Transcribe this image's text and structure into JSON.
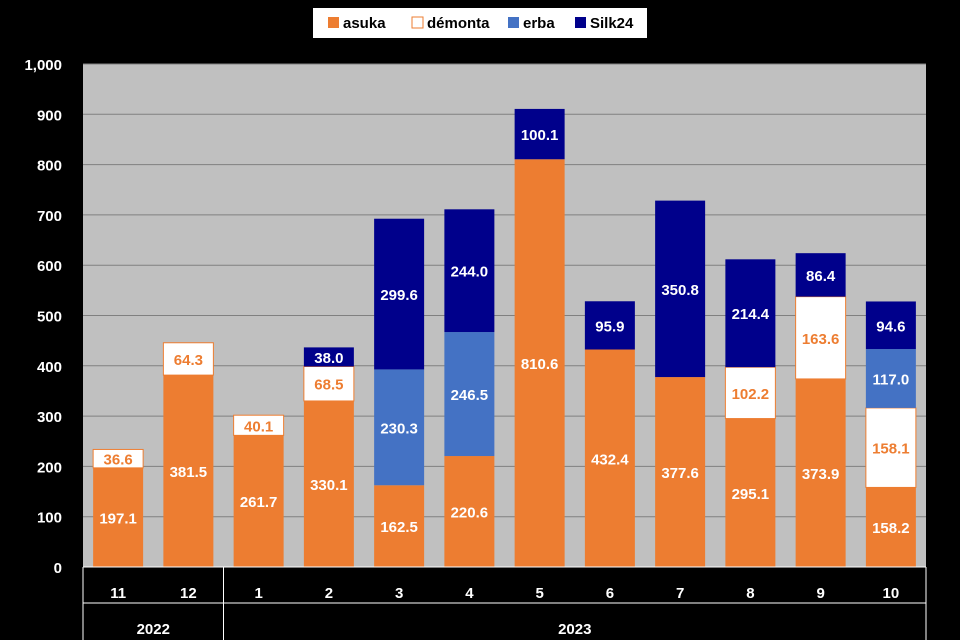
{
  "chart_data": {
    "type": "bar",
    "stacked": true,
    "categories": [
      "11",
      "12",
      "1",
      "2",
      "3",
      "4",
      "5",
      "6",
      "7",
      "8",
      "9",
      "10"
    ],
    "year_groups": [
      {
        "label": "2022",
        "count": 2
      },
      {
        "label": "2023",
        "count": 10
      }
    ],
    "series": [
      {
        "name": "asuka",
        "color": "#ED7D31",
        "label_color": "#FFFFFF",
        "values": [
          197.1,
          381.5,
          261.7,
          330.1,
          162.5,
          220.6,
          810.6,
          432.4,
          377.6,
          295.1,
          373.9,
          158.2
        ]
      },
      {
        "name": "démonta",
        "color": "#FFFFFF",
        "border": "#ED7D31",
        "label_color": "#ED7D31",
        "values": [
          36.6,
          64.3,
          40.1,
          68.5,
          null,
          null,
          null,
          null,
          null,
          102.2,
          163.6,
          158.1
        ]
      },
      {
        "name": "erba",
        "color": "#4472C4",
        "label_color": "#FFFFFF",
        "values": [
          null,
          null,
          null,
          null,
          230.3,
          246.5,
          null,
          null,
          null,
          null,
          null,
          117.0
        ]
      },
      {
        "name": "Silk24",
        "color": "#00008B",
        "label_color": "#FFFFFF",
        "values": [
          null,
          null,
          null,
          38.0,
          299.6,
          244.0,
          100.1,
          95.9,
          350.8,
          214.4,
          86.4,
          94.6
        ]
      }
    ],
    "ylim": [
      0,
      1000
    ],
    "yticks": [
      "0",
      "100",
      "200",
      "300",
      "400",
      "500",
      "600",
      "700",
      "800",
      "900",
      "1,000"
    ],
    "grid": true,
    "legend_position": "top"
  }
}
